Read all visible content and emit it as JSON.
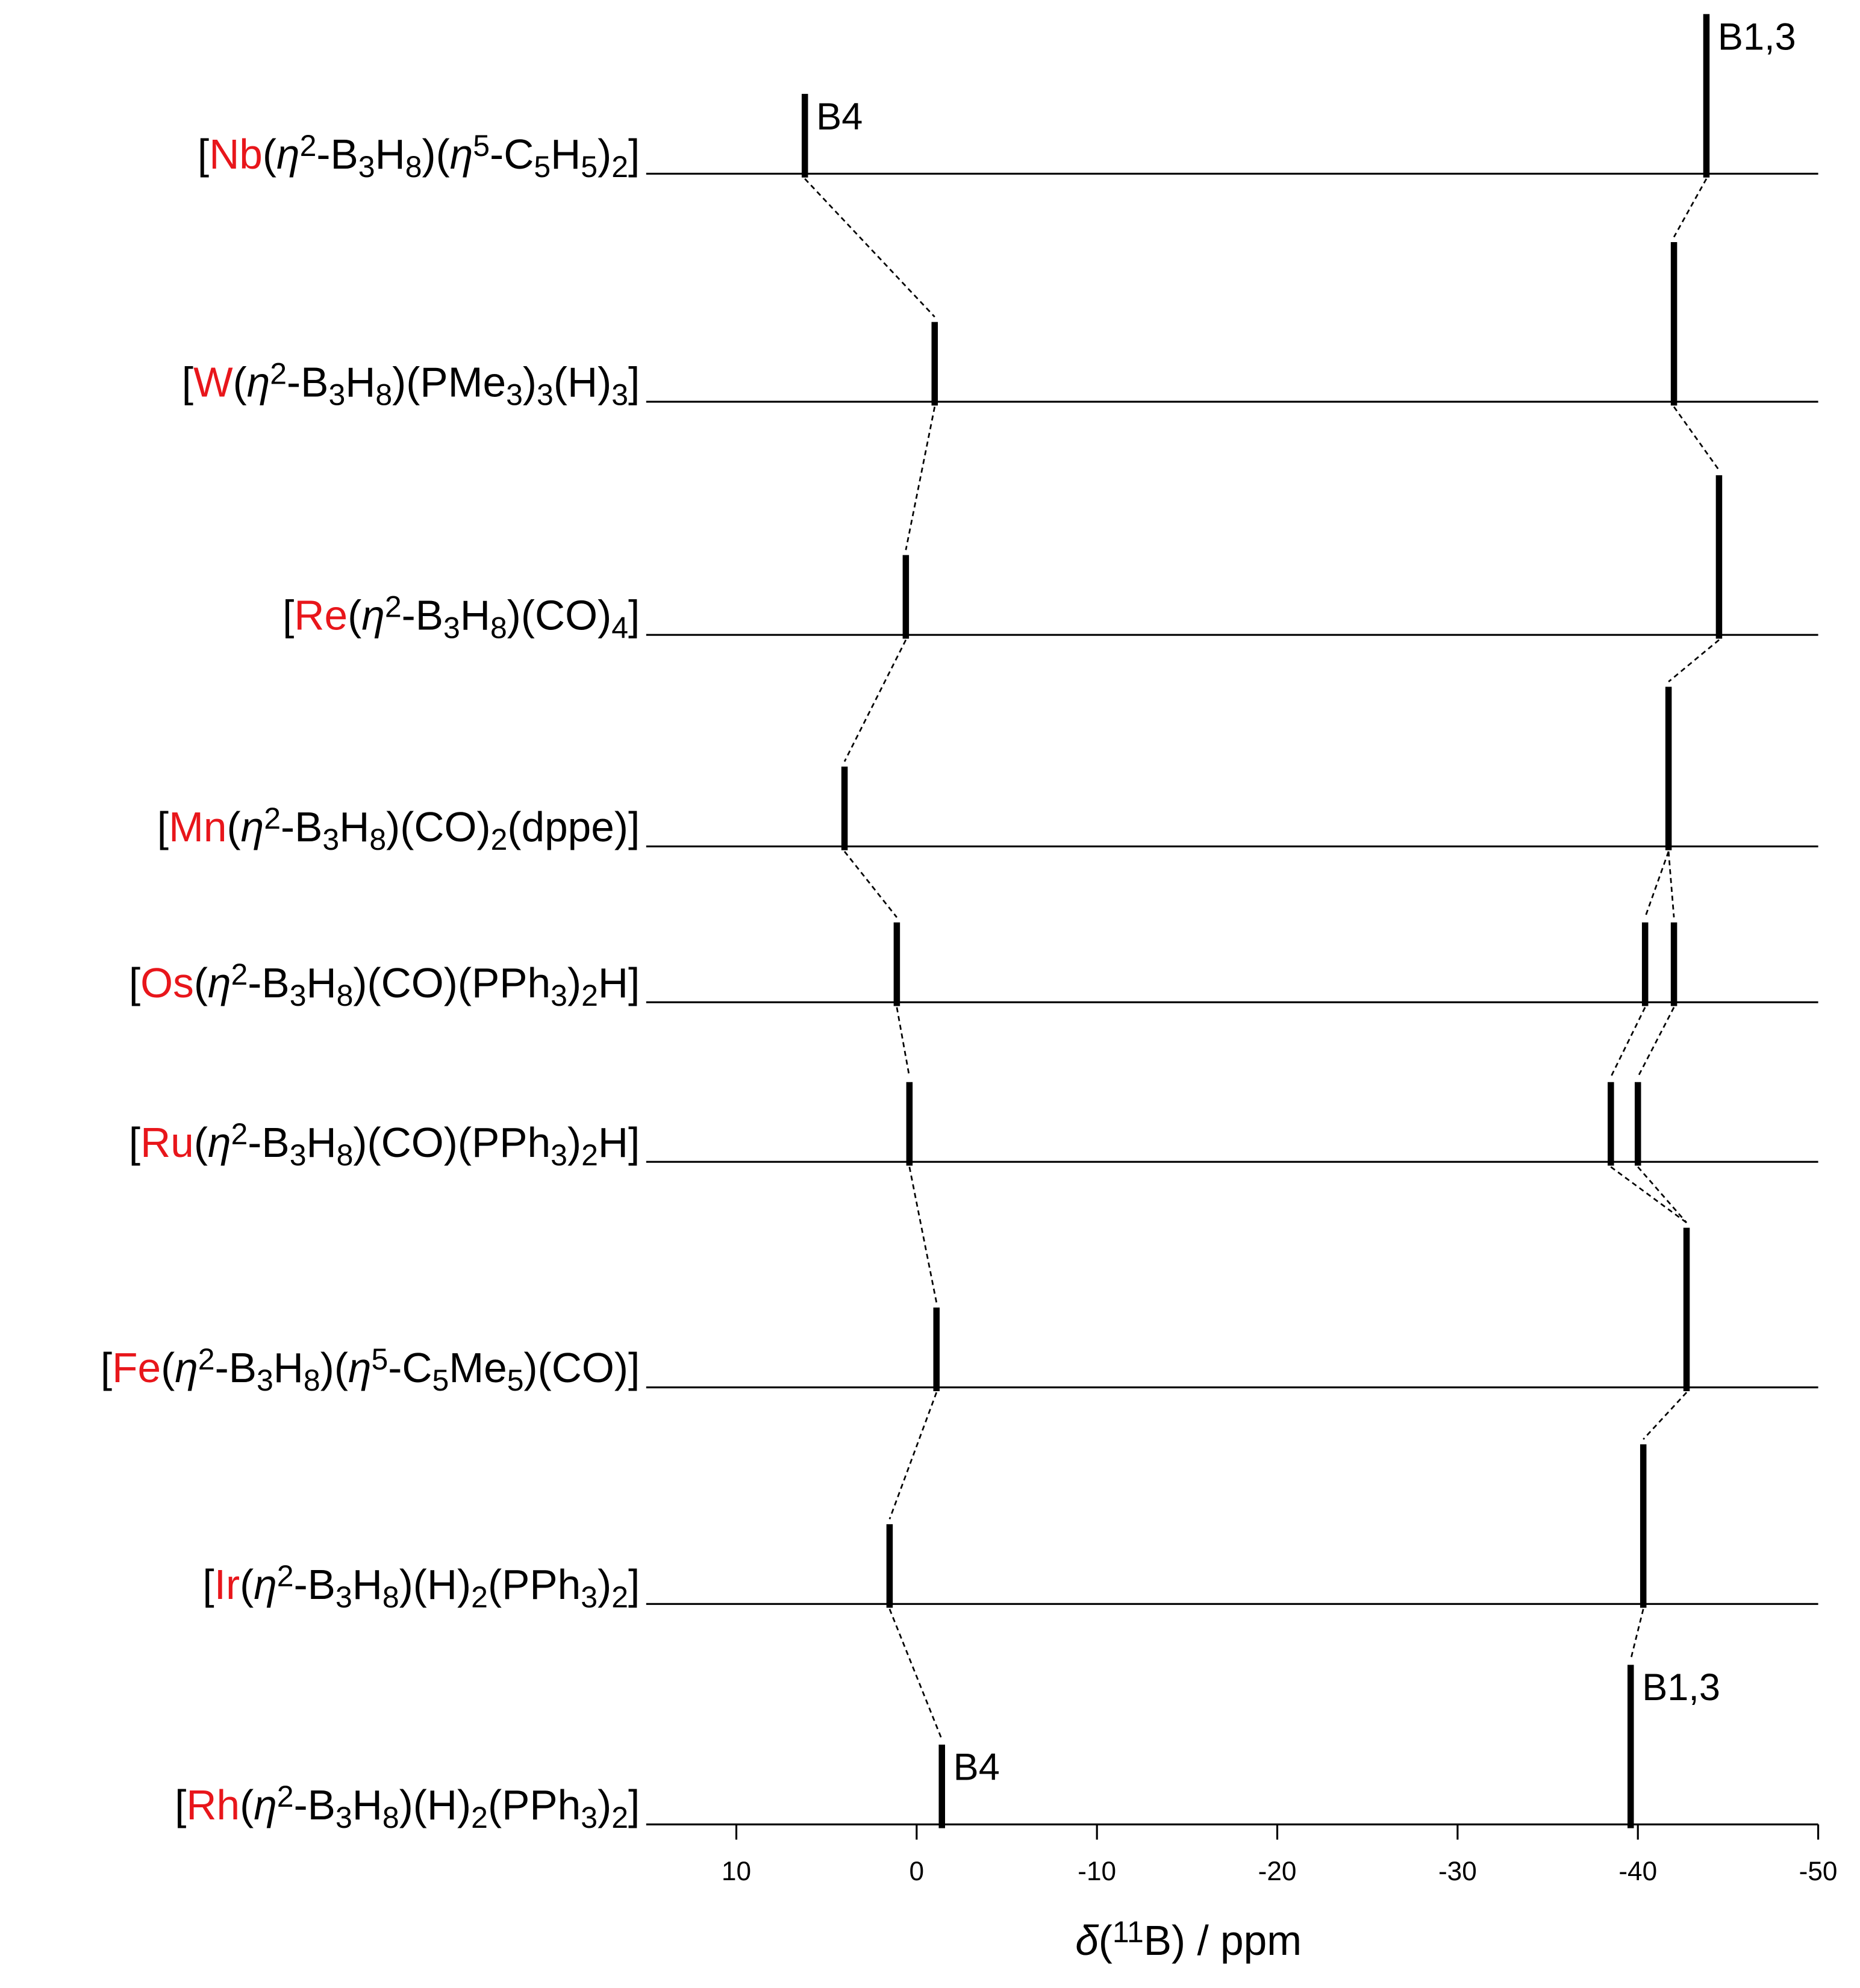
{
  "chart_data": {
    "type": "stick-spectrum",
    "xlim": [
      15,
      -50
    ],
    "xticks": [
      10,
      0,
      -10,
      -20,
      -30,
      -40,
      -50
    ],
    "xlabel": [
      [
        "δ",
        "i"
      ],
      [
        "(",
        "n"
      ],
      [
        "11",
        "sup"
      ],
      [
        "B) / ppm",
        "n"
      ]
    ],
    "metal_color": "#e8161b",
    "peak_color": "#000000",
    "series": [
      {
        "label": [
          [
            "[",
            "n"
          ],
          [
            "Nb",
            "m"
          ],
          [
            "(",
            "n"
          ],
          [
            "η",
            "i"
          ],
          [
            "2",
            "sup"
          ],
          [
            "-B",
            "n"
          ],
          [
            "3",
            "sub"
          ],
          [
            "H",
            "n"
          ],
          [
            "8",
            "sub"
          ],
          [
            ")(",
            "n"
          ],
          [
            "η",
            "i"
          ],
          [
            "5",
            "sup"
          ],
          [
            "-C",
            "n"
          ],
          [
            "5",
            "sub"
          ],
          [
            "H",
            "n"
          ],
          [
            "5",
            "sub"
          ],
          [
            ")",
            "n"
          ],
          [
            "2",
            "sub"
          ],
          [
            "]",
            "n"
          ]
        ],
        "peaks": [
          6.2,
          -43.8
        ],
        "intensities": [
          1,
          2
        ]
      },
      {
        "label": [
          [
            "[",
            "n"
          ],
          [
            "W",
            "m"
          ],
          [
            "(",
            "n"
          ],
          [
            "η",
            "i"
          ],
          [
            "2",
            "sup"
          ],
          [
            "-B",
            "n"
          ],
          [
            "3",
            "sub"
          ],
          [
            "H",
            "n"
          ],
          [
            "8",
            "sub"
          ],
          [
            ")(PMe",
            "n"
          ],
          [
            "3",
            "sub"
          ],
          [
            ")",
            "n"
          ],
          [
            "3",
            "sub"
          ],
          [
            "(H)",
            "n"
          ],
          [
            "3",
            "sub"
          ],
          [
            "]",
            "n"
          ]
        ],
        "peaks": [
          -1.0,
          -42.0
        ],
        "intensities": [
          1,
          2
        ]
      },
      {
        "label": [
          [
            "[",
            "n"
          ],
          [
            "Re",
            "m"
          ],
          [
            "(",
            "n"
          ],
          [
            "η",
            "i"
          ],
          [
            "2",
            "sup"
          ],
          [
            "-B",
            "n"
          ],
          [
            "3",
            "sub"
          ],
          [
            "H",
            "n"
          ],
          [
            "8",
            "sub"
          ],
          [
            ")(CO)",
            "n"
          ],
          [
            "4",
            "sub"
          ],
          [
            "]",
            "n"
          ]
        ],
        "peaks": [
          0.6,
          -44.5
        ],
        "intensities": [
          1,
          2
        ]
      },
      {
        "label": [
          [
            "[",
            "n"
          ],
          [
            "Mn",
            "m"
          ],
          [
            "(",
            "n"
          ],
          [
            "η",
            "i"
          ],
          [
            "2",
            "sup"
          ],
          [
            "-B",
            "n"
          ],
          [
            "3",
            "sub"
          ],
          [
            "H",
            "n"
          ],
          [
            "8",
            "sub"
          ],
          [
            ")(CO)",
            "n"
          ],
          [
            "2",
            "sub"
          ],
          [
            "(dppe)]",
            "n"
          ]
        ],
        "peaks": [
          4.0,
          -41.7
        ],
        "intensities": [
          1,
          2
        ]
      },
      {
        "label": [
          [
            "[",
            "n"
          ],
          [
            "Os",
            "m"
          ],
          [
            "(",
            "n"
          ],
          [
            "η",
            "i"
          ],
          [
            "2",
            "sup"
          ],
          [
            "-B",
            "n"
          ],
          [
            "3",
            "sub"
          ],
          [
            "H",
            "n"
          ],
          [
            "8",
            "sub"
          ],
          [
            ")(CO)(PPh",
            "n"
          ],
          [
            "3",
            "sub"
          ],
          [
            ")",
            "n"
          ],
          [
            "2",
            "sub"
          ],
          [
            "H]",
            "n"
          ]
        ],
        "peaks": [
          1.1,
          -40.4,
          -42.0
        ],
        "intensities": [
          1,
          1,
          1
        ]
      },
      {
        "label": [
          [
            "[",
            "n"
          ],
          [
            "Ru",
            "m"
          ],
          [
            "(",
            "n"
          ],
          [
            "η",
            "i"
          ],
          [
            "2",
            "sup"
          ],
          [
            "-B",
            "n"
          ],
          [
            "3",
            "sub"
          ],
          [
            "H",
            "n"
          ],
          [
            "8",
            "sub"
          ],
          [
            ")(CO)(PPh",
            "n"
          ],
          [
            "3",
            "sub"
          ],
          [
            ")",
            "n"
          ],
          [
            "2",
            "sub"
          ],
          [
            "H]",
            "n"
          ]
        ],
        "peaks": [
          0.4,
          -38.5,
          -40.0
        ],
        "intensities": [
          1,
          1,
          1
        ]
      },
      {
        "label": [
          [
            "[",
            "n"
          ],
          [
            "Fe",
            "m"
          ],
          [
            "(",
            "n"
          ],
          [
            "η",
            "i"
          ],
          [
            "2",
            "sup"
          ],
          [
            "-B",
            "n"
          ],
          [
            "3",
            "sub"
          ],
          [
            "H",
            "n"
          ],
          [
            "8",
            "sub"
          ],
          [
            ")(",
            "n"
          ],
          [
            "η",
            "i"
          ],
          [
            "5",
            "sup"
          ],
          [
            "-C",
            "n"
          ],
          [
            "5",
            "sub"
          ],
          [
            "Me",
            "n"
          ],
          [
            "5",
            "sub"
          ],
          [
            ")(CO)]",
            "n"
          ]
        ],
        "peaks": [
          -1.1,
          -42.7
        ],
        "intensities": [
          1,
          2
        ]
      },
      {
        "label": [
          [
            "[",
            "n"
          ],
          [
            "Ir",
            "m"
          ],
          [
            "(",
            "n"
          ],
          [
            "η",
            "i"
          ],
          [
            "2",
            "sup"
          ],
          [
            "-B",
            "n"
          ],
          [
            "3",
            "sub"
          ],
          [
            "H",
            "n"
          ],
          [
            "8",
            "sub"
          ],
          [
            ")(H)",
            "n"
          ],
          [
            "2",
            "sub"
          ],
          [
            "(PPh",
            "n"
          ],
          [
            "3",
            "sub"
          ],
          [
            ")",
            "n"
          ],
          [
            "2",
            "sub"
          ],
          [
            "]",
            "n"
          ]
        ],
        "peaks": [
          1.5,
          -40.3
        ],
        "intensities": [
          1,
          2
        ]
      },
      {
        "label": [
          [
            "[",
            "n"
          ],
          [
            "Rh",
            "m"
          ],
          [
            "(",
            "n"
          ],
          [
            "η",
            "i"
          ],
          [
            "2",
            "sup"
          ],
          [
            "-B",
            "n"
          ],
          [
            "3",
            "sub"
          ],
          [
            "H",
            "n"
          ],
          [
            "8",
            "sub"
          ],
          [
            ")(H)",
            "n"
          ],
          [
            "2",
            "sub"
          ],
          [
            "(PPh",
            "n"
          ],
          [
            "3",
            "sub"
          ],
          [
            ")",
            "n"
          ],
          [
            "2",
            "sub"
          ],
          [
            "]",
            "n"
          ]
        ],
        "peaks": [
          -1.4,
          -39.6
        ],
        "intensities": [
          1,
          2
        ]
      }
    ],
    "annotations": [
      {
        "text": "B4",
        "series": 0,
        "peak": 0
      },
      {
        "text": "B1,3",
        "series": 0,
        "peak": 1
      },
      {
        "text": "B4",
        "series": 8,
        "peak": 0
      },
      {
        "text": "B1,3",
        "series": 8,
        "peak": 1
      }
    ]
  }
}
